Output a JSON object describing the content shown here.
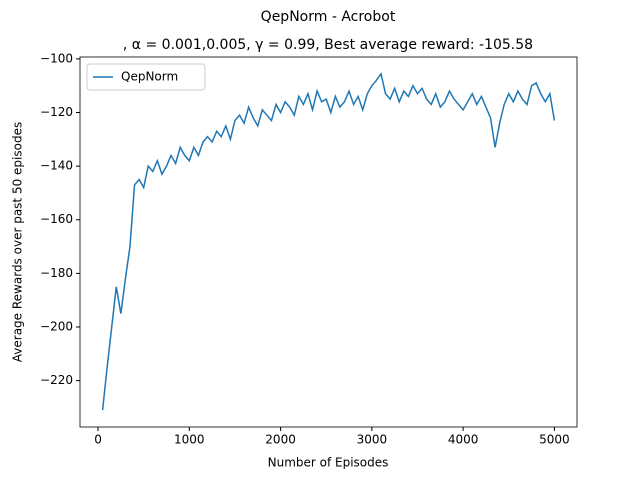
{
  "chart_data": {
    "type": "line",
    "title": "QepNorm - Acrobot",
    "subtitle": ", α = 0.001,0.005, γ = 0.99,  Best average reward: -105.58",
    "x_label": "Number of Episodes",
    "y_label": "Average Rewards over past 50 episodes",
    "legend": "upper left",
    "xlim": [
      -197.5,
      5247.5
    ],
    "ylim": [
      -237.3,
      -99.3
    ],
    "xticks": [
      0,
      1000,
      2000,
      3000,
      4000,
      5000
    ],
    "yticks": [
      {
        "value": -220,
        "label": "−220"
      },
      {
        "value": -200,
        "label": "−200"
      },
      {
        "value": -180,
        "label": "−180"
      },
      {
        "value": -160,
        "label": "−160"
      },
      {
        "value": -140,
        "label": "−140"
      },
      {
        "value": -120,
        "label": "−120"
      },
      {
        "value": -100,
        "label": "−100"
      }
    ],
    "x": [
      50,
      100,
      150,
      200,
      250,
      300,
      350,
      400,
      450,
      500,
      550,
      600,
      650,
      700,
      750,
      800,
      850,
      900,
      950,
      1000,
      1050,
      1100,
      1150,
      1200,
      1250,
      1300,
      1350,
      1400,
      1450,
      1500,
      1550,
      1600,
      1650,
      1700,
      1750,
      1800,
      1850,
      1900,
      1950,
      2000,
      2050,
      2100,
      2150,
      2200,
      2250,
      2300,
      2350,
      2400,
      2450,
      2500,
      2550,
      2600,
      2650,
      2700,
      2750,
      2800,
      2850,
      2900,
      2950,
      3000,
      3050,
      3100,
      3150,
      3200,
      3250,
      3300,
      3350,
      3400,
      3450,
      3500,
      3550,
      3600,
      3650,
      3700,
      3750,
      3800,
      3850,
      3900,
      3950,
      4000,
      4050,
      4100,
      4150,
      4200,
      4250,
      4300,
      4350,
      4400,
      4450,
      4500,
      4550,
      4600,
      4650,
      4700,
      4750,
      4800,
      4850,
      4900,
      4950,
      5000
    ],
    "series": [
      {
        "name": "QepNorm",
        "color": "#1f77b4",
        "values": [
          -231,
          -215,
          -200,
          -185,
          -195,
          -182,
          -170,
          -147,
          -145,
          -148,
          -140,
          -142,
          -138,
          -143,
          -140,
          -136,
          -139,
          -133,
          -136,
          -138,
          -133,
          -136,
          -131,
          -129,
          -131,
          -127,
          -129,
          -125,
          -130,
          -123,
          -121,
          -124,
          -118,
          -122,
          -125,
          -119,
          -121,
          -123,
          -117,
          -120,
          -116,
          -118,
          -121,
          -114,
          -117,
          -113,
          -119,
          -112,
          -116,
          -115,
          -120,
          -114,
          -118,
          -116,
          -112,
          -117,
          -114,
          -119,
          -113,
          -110,
          -108,
          -105.58,
          -113,
          -115,
          -111,
          -116,
          -112,
          -114,
          -110,
          -113,
          -111,
          -115,
          -117,
          -113,
          -118,
          -116,
          -112,
          -115,
          -117,
          -119,
          -116,
          -113,
          -117,
          -114,
          -118,
          -122,
          -133,
          -124,
          -117,
          -113,
          -116,
          -112,
          -115,
          -117,
          -110,
          -109,
          -113,
          -116,
          -113,
          -123
        ]
      }
    ]
  }
}
